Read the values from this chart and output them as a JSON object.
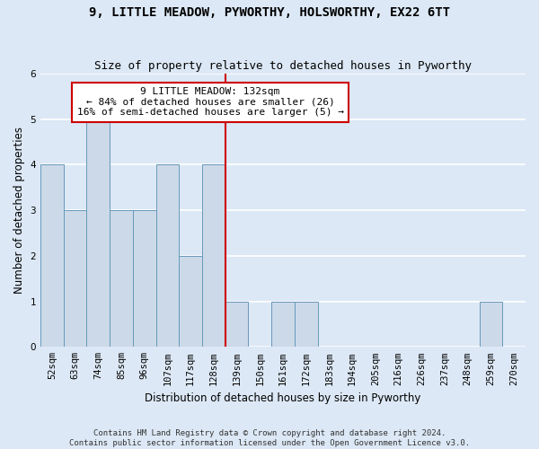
{
  "title": "9, LITTLE MEADOW, PYWORTHY, HOLSWORTHY, EX22 6TT",
  "subtitle": "Size of property relative to detached houses in Pyworthy",
  "xlabel": "Distribution of detached houses by size in Pyworthy",
  "ylabel": "Number of detached properties",
  "categories": [
    "52sqm",
    "63sqm",
    "74sqm",
    "85sqm",
    "96sqm",
    "107sqm",
    "117sqm",
    "128sqm",
    "139sqm",
    "150sqm",
    "161sqm",
    "172sqm",
    "183sqm",
    "194sqm",
    "205sqm",
    "216sqm",
    "226sqm",
    "237sqm",
    "248sqm",
    "259sqm",
    "270sqm"
  ],
  "values": [
    4,
    3,
    5,
    3,
    3,
    4,
    2,
    4,
    1,
    0,
    1,
    1,
    0,
    0,
    0,
    0,
    0,
    0,
    0,
    1,
    0
  ],
  "bar_color": "#ccd9e8",
  "bar_edge_color": "#6699bb",
  "background_color": "#dce8f5",
  "grid_color": "#ffffff",
  "ref_line_x": 7.5,
  "ref_line_color": "#cc0000",
  "annotation_line1": "9 LITTLE MEADOW: 132sqm",
  "annotation_line2": "← 84% of detached houses are smaller (26)",
  "annotation_line3": "16% of semi-detached houses are larger (5) →",
  "annotation_box_color": "#ffffff",
  "annotation_box_edge": "#cc0000",
  "ylim": [
    0,
    6
  ],
  "yticks": [
    0,
    1,
    2,
    3,
    4,
    5,
    6
  ],
  "footnote": "Contains HM Land Registry data © Crown copyright and database right 2024.\nContains public sector information licensed under the Open Government Licence v3.0.",
  "title_fontsize": 10,
  "subtitle_fontsize": 9,
  "axis_label_fontsize": 8.5,
  "tick_fontsize": 7.5,
  "annotation_fontsize": 8,
  "footnote_fontsize": 6.5
}
